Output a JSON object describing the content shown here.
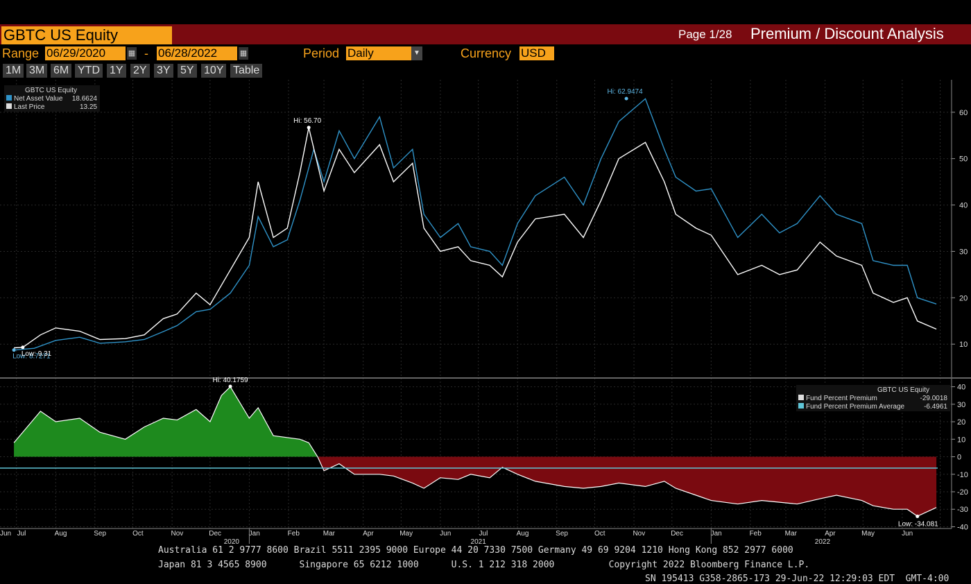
{
  "header": {
    "ticker": "GBTC US Equity",
    "page": "Page 1/28",
    "title": "Premium / Discount Analysis"
  },
  "controls": {
    "range_label": "Range",
    "start_date": "06/29/2020",
    "dash": "-",
    "end_date": "06/28/2022",
    "period_label": "Period",
    "period_value": "Daily",
    "currency_label": "Currency",
    "currency_value": "USD",
    "zoom_buttons": [
      "1M",
      "3M",
      "6M",
      "YTD",
      "1Y",
      "2Y",
      "3Y",
      "5Y",
      "10Y",
      "Table"
    ]
  },
  "colors": {
    "nav": "#2f93c9",
    "price": "#ffffff",
    "premium_fill": "#1e8a1e",
    "discount_fill": "#7a0a10",
    "avg_line": "#5fc6d8",
    "orange": "#f7a21b"
  },
  "chart_data": [
    {
      "type": "line",
      "legend_title": "GBTC US Equity",
      "legend": [
        {
          "name": "Net Asset Value",
          "value": "18.6624",
          "color": "#2f93c9"
        },
        {
          "name": "Last Price",
          "value": "13.25",
          "color": "#dddddd"
        }
      ],
      "ylim": [
        3,
        67
      ],
      "yticks": [
        10,
        20,
        30,
        40,
        50,
        60
      ],
      "annotations": [
        {
          "text": "Hi: 56.70",
          "x": "2021-02-17",
          "y": 56.7
        },
        {
          "text": "Hi: 62.9474",
          "x": "2021-10-26",
          "y": 62.95
        },
        {
          "text": "Low: 8.7271",
          "x": "2020-06-29",
          "y": 8.73
        },
        {
          "text": "Low: 9.31",
          "x": "2020-07-06",
          "y": 9.31
        }
      ],
      "series": [
        {
          "name": "Net Asset Value",
          "points": [
            [
              "2020-06-29",
              8.73
            ],
            [
              "2020-07-15",
              9.1
            ],
            [
              "2020-08-01",
              10.8
            ],
            [
              "2020-08-20",
              11.5
            ],
            [
              "2020-09-05",
              10.2
            ],
            [
              "2020-09-25",
              10.5
            ],
            [
              "2020-10-10",
              11.0
            ],
            [
              "2020-10-25",
              12.7
            ],
            [
              "2020-11-05",
              14.0
            ],
            [
              "2020-11-20",
              17.0
            ],
            [
              "2020-12-01",
              17.5
            ],
            [
              "2020-12-17",
              21.0
            ],
            [
              "2021-01-01",
              27.0
            ],
            [
              "2021-01-08",
              37.5
            ],
            [
              "2021-01-20",
              31.0
            ],
            [
              "2021-01-31",
              32.5
            ],
            [
              "2021-02-10",
              41.0
            ],
            [
              "2021-02-21",
              52.0
            ],
            [
              "2021-03-01",
              45.0
            ],
            [
              "2021-03-13",
              56.0
            ],
            [
              "2021-03-25",
              50.0
            ],
            [
              "2021-04-14",
              59.0
            ],
            [
              "2021-04-25",
              48.0
            ],
            [
              "2021-05-10",
              52.0
            ],
            [
              "2021-05-19",
              38.0
            ],
            [
              "2021-06-01",
              33.0
            ],
            [
              "2021-06-15",
              36.0
            ],
            [
              "2021-06-25",
              31.0
            ],
            [
              "2021-07-10",
              30.0
            ],
            [
              "2021-07-20",
              27.0
            ],
            [
              "2021-08-01",
              36.0
            ],
            [
              "2021-08-15",
              42.0
            ],
            [
              "2021-09-07",
              46.0
            ],
            [
              "2021-09-22",
              40.0
            ],
            [
              "2021-10-06",
              50.0
            ],
            [
              "2021-10-20",
              58.0
            ],
            [
              "2021-11-10",
              62.9
            ],
            [
              "2021-11-25",
              52.0
            ],
            [
              "2021-12-04",
              46.0
            ],
            [
              "2021-12-20",
              43.0
            ],
            [
              "2022-01-01",
              43.5
            ],
            [
              "2022-01-22",
              33.0
            ],
            [
              "2022-02-10",
              38.0
            ],
            [
              "2022-02-24",
              34.0
            ],
            [
              "2022-03-10",
              36.0
            ],
            [
              "2022-03-28",
              42.0
            ],
            [
              "2022-04-10",
              38.0
            ],
            [
              "2022-04-30",
              36.0
            ],
            [
              "2022-05-09",
              28.0
            ],
            [
              "2022-05-25",
              27.0
            ],
            [
              "2022-06-05",
              27.0
            ],
            [
              "2022-06-13",
              20.0
            ],
            [
              "2022-06-28",
              18.66
            ]
          ]
        },
        {
          "name": "Last Price",
          "points": [
            [
              "2020-06-29",
              9.2
            ],
            [
              "2020-07-06",
              9.31
            ],
            [
              "2020-07-20",
              12.0
            ],
            [
              "2020-08-01",
              13.5
            ],
            [
              "2020-08-20",
              12.8
            ],
            [
              "2020-09-05",
              11.0
            ],
            [
              "2020-09-25",
              11.2
            ],
            [
              "2020-10-10",
              12.0
            ],
            [
              "2020-10-25",
              15.5
            ],
            [
              "2020-11-05",
              16.5
            ],
            [
              "2020-11-20",
              21.0
            ],
            [
              "2020-12-01",
              18.5
            ],
            [
              "2020-12-17",
              26.0
            ],
            [
              "2021-01-01",
              33.0
            ],
            [
              "2021-01-08",
              45.0
            ],
            [
              "2021-01-20",
              33.0
            ],
            [
              "2021-01-31",
              35.0
            ],
            [
              "2021-02-10",
              47.0
            ],
            [
              "2021-02-17",
              56.7
            ],
            [
              "2021-03-01",
              43.0
            ],
            [
              "2021-03-13",
              52.0
            ],
            [
              "2021-03-25",
              47.0
            ],
            [
              "2021-04-14",
              53.0
            ],
            [
              "2021-04-25",
              45.0
            ],
            [
              "2021-05-10",
              49.0
            ],
            [
              "2021-05-19",
              35.0
            ],
            [
              "2021-06-01",
              30.0
            ],
            [
              "2021-06-15",
              31.0
            ],
            [
              "2021-06-25",
              28.0
            ],
            [
              "2021-07-10",
              27.0
            ],
            [
              "2021-07-20",
              24.5
            ],
            [
              "2021-08-01",
              32.0
            ],
            [
              "2021-08-15",
              37.0
            ],
            [
              "2021-09-07",
              38.0
            ],
            [
              "2021-09-22",
              33.0
            ],
            [
              "2021-10-06",
              41.0
            ],
            [
              "2021-10-20",
              50.0
            ],
            [
              "2021-11-10",
              53.5
            ],
            [
              "2021-11-25",
              45.0
            ],
            [
              "2021-12-04",
              38.0
            ],
            [
              "2021-12-20",
              35.0
            ],
            [
              "2022-01-01",
              33.5
            ],
            [
              "2022-01-22",
              25.0
            ],
            [
              "2022-02-10",
              27.0
            ],
            [
              "2022-02-24",
              25.0
            ],
            [
              "2022-03-10",
              26.0
            ],
            [
              "2022-03-28",
              32.0
            ],
            [
              "2022-04-10",
              29.0
            ],
            [
              "2022-04-30",
              27.0
            ],
            [
              "2022-05-09",
              21.0
            ],
            [
              "2022-05-25",
              19.0
            ],
            [
              "2022-06-05",
              20.0
            ],
            [
              "2022-06-13",
              15.0
            ],
            [
              "2022-06-28",
              13.25
            ]
          ]
        }
      ]
    },
    {
      "type": "area",
      "legend_title": "GBTC US Equity",
      "legend": [
        {
          "name": "Fund Percent Premium",
          "value": "-29.0018",
          "color": "#dddddd"
        },
        {
          "name": "Fund Percent Premium Average",
          "value": "-6.4961",
          "color": "#5fc6d8"
        }
      ],
      "ylim": [
        -41,
        43
      ],
      "yticks": [
        40,
        30,
        20,
        10,
        0,
        -10,
        -20,
        -30,
        -40
      ],
      "average": -6.4961,
      "annotations": [
        {
          "text": "Hi: 40.1759",
          "x": "2020-12-17",
          "y": 40.18
        },
        {
          "text": "Low: -34.081",
          "x": "2022-06-13",
          "y": -34.08
        }
      ],
      "series": [
        {
          "name": "Fund Percent Premium",
          "points": [
            [
              "2020-06-29",
              8
            ],
            [
              "2020-07-06",
              14
            ],
            [
              "2020-07-20",
              26
            ],
            [
              "2020-08-01",
              20
            ],
            [
              "2020-08-20",
              22
            ],
            [
              "2020-09-05",
              14
            ],
            [
              "2020-09-25",
              10
            ],
            [
              "2020-10-10",
              17
            ],
            [
              "2020-10-25",
              22
            ],
            [
              "2020-11-05",
              21
            ],
            [
              "2020-11-20",
              27
            ],
            [
              "2020-12-01",
              20
            ],
            [
              "2020-12-10",
              35
            ],
            [
              "2020-12-17",
              40
            ],
            [
              "2021-01-01",
              22
            ],
            [
              "2021-01-08",
              28
            ],
            [
              "2021-01-20",
              12
            ],
            [
              "2021-02-10",
              10
            ],
            [
              "2021-02-17",
              8
            ],
            [
              "2021-02-24",
              0
            ],
            [
              "2021-03-01",
              -8
            ],
            [
              "2021-03-13",
              -4
            ],
            [
              "2021-03-25",
              -10
            ],
            [
              "2021-04-14",
              -10
            ],
            [
              "2021-04-25",
              -11
            ],
            [
              "2021-05-10",
              -15
            ],
            [
              "2021-05-19",
              -18
            ],
            [
              "2021-06-01",
              -12
            ],
            [
              "2021-06-15",
              -13
            ],
            [
              "2021-06-25",
              -10
            ],
            [
              "2021-07-10",
              -12
            ],
            [
              "2021-07-20",
              -6
            ],
            [
              "2021-08-01",
              -10
            ],
            [
              "2021-08-15",
              -14
            ],
            [
              "2021-09-07",
              -17
            ],
            [
              "2021-09-22",
              -18
            ],
            [
              "2021-10-06",
              -17
            ],
            [
              "2021-10-20",
              -15
            ],
            [
              "2021-11-10",
              -17
            ],
            [
              "2021-11-25",
              -14
            ],
            [
              "2021-12-04",
              -18
            ],
            [
              "2021-12-20",
              -22
            ],
            [
              "2022-01-01",
              -25
            ],
            [
              "2022-01-22",
              -27
            ],
            [
              "2022-02-10",
              -25
            ],
            [
              "2022-02-24",
              -26
            ],
            [
              "2022-03-10",
              -27
            ],
            [
              "2022-03-28",
              -24
            ],
            [
              "2022-04-10",
              -22
            ],
            [
              "2022-04-30",
              -25
            ],
            [
              "2022-05-09",
              -28
            ],
            [
              "2022-05-25",
              -30
            ],
            [
              "2022-06-05",
              -30
            ],
            [
              "2022-06-13",
              -34
            ],
            [
              "2022-06-28",
              -29
            ]
          ]
        }
      ]
    }
  ],
  "x_axis": {
    "months": [
      "Jun",
      "Jul",
      "Aug",
      "Sep",
      "Oct",
      "Nov",
      "Dec",
      "Jan",
      "Feb",
      "Mar",
      "Apr",
      "May",
      "Jun",
      "Jul",
      "Aug",
      "Sep",
      "Oct",
      "Nov",
      "Dec",
      "Jan",
      "Feb",
      "Mar",
      "Apr",
      "May",
      "Jun"
    ],
    "years": [
      "2020",
      "2021",
      "2022"
    ]
  },
  "footer": {
    "line1": "Australia 61 2 9777 8600 Brazil 5511 2395 9000 Europe 44 20 7330 7500 Germany 49 69 9204 1210 Hong Kong 852 2977 6000",
    "line2": "Japan 81 3 4565 8900      Singapore 65 6212 1000      U.S. 1 212 318 2000          Copyright 2022 Bloomberg Finance L.P.",
    "line3": "SN 195413 G358-2865-173 29-Jun-22 12:29:03 EDT  GMT-4:00"
  }
}
